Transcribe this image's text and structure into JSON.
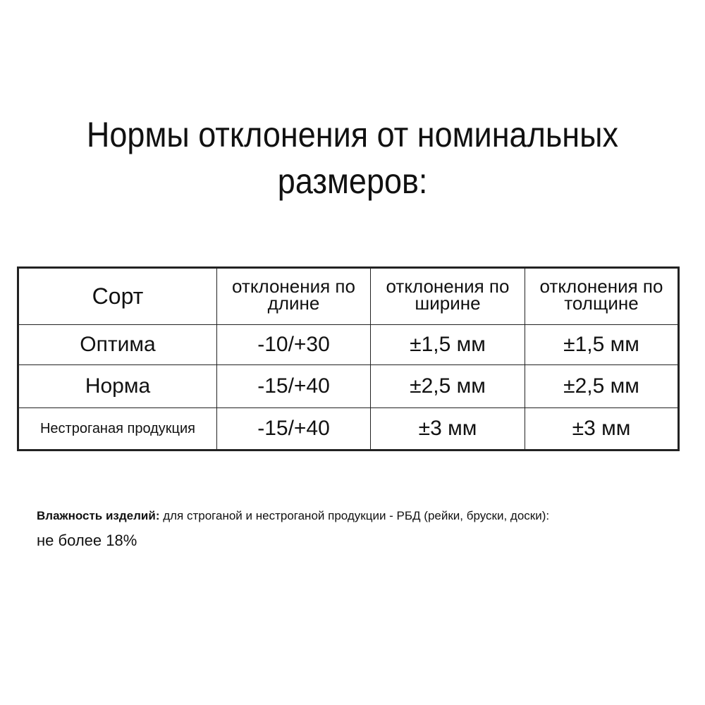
{
  "title": {
    "line1": "Нормы отклонения от номинальных",
    "line2": "размеров:"
  },
  "table": {
    "headers": [
      "Сорт",
      "отклонения по длине",
      "отклонения по ширине",
      "отклонения по толщине"
    ],
    "rows": [
      [
        "Оптима",
        "-10/+30",
        "±1,5 мм",
        "±1,5 мм"
      ],
      [
        "Норма",
        "-15/+40",
        "±2,5 мм",
        "±2,5 мм"
      ],
      [
        "Нестроганая продукция",
        "-15/+40",
        "±3 мм",
        "±3 мм"
      ]
    ]
  },
  "note": {
    "bold": "Влажность изделий:",
    "text": " для строганой и нестроганой продукции - РБД (рейки, бруски, доски):",
    "line2": "не более 18%"
  }
}
